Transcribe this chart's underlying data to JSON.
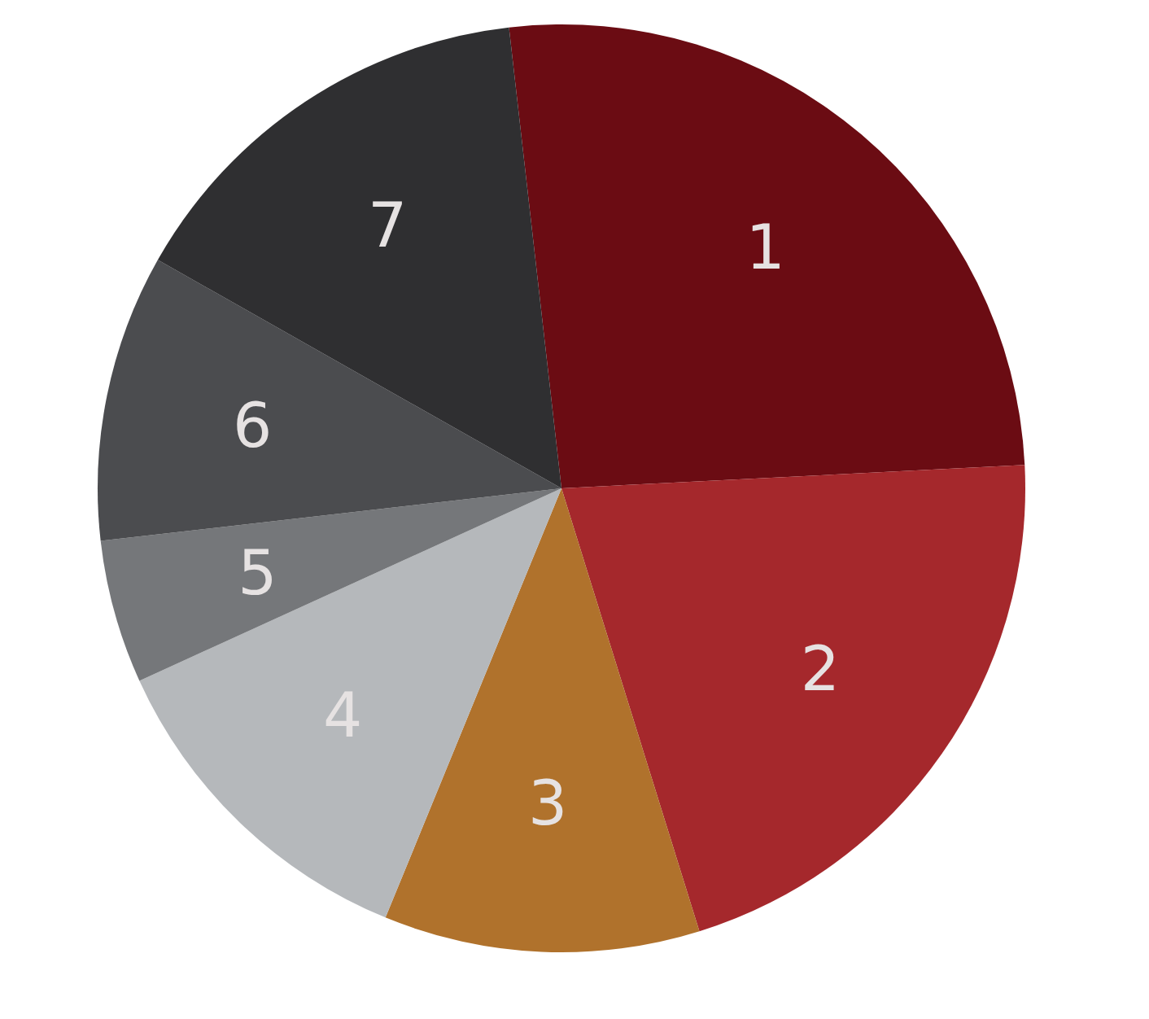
{
  "chart_data": {
    "type": "pie",
    "categories": [
      "1",
      "2",
      "3",
      "4",
      "5",
      "6",
      "7"
    ],
    "values": [
      26,
      21,
      11,
      12,
      5,
      10,
      15
    ],
    "colors": [
      "#6b0c13",
      "#a5282c",
      "#b0722c",
      "#b5b8bb",
      "#75777a",
      "#4b4c4f",
      "#2f2f31"
    ]
  }
}
